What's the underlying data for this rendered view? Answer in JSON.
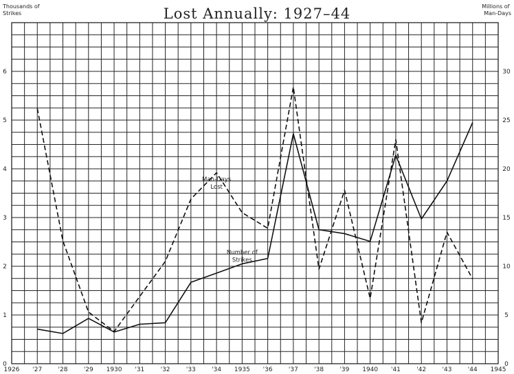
{
  "chart_data": {
    "type": "line",
    "title": "Lost Annually: 1927–44",
    "left_axis_label": [
      "Thousands of",
      "Strikes"
    ],
    "right_axis_label": [
      "Millions of",
      "Man-Days"
    ],
    "x_tick_labels": [
      "1926",
      "'27",
      "'28",
      "'29",
      "1930",
      "'31",
      "'32",
      "'33",
      "'34",
      "1935",
      "'36",
      "'37",
      "'38",
      "'39",
      "1940",
      "'41",
      "'42",
      "'43",
      "'44",
      "1945"
    ],
    "x_range": [
      1926,
      1945
    ],
    "left_ticks": [
      "0",
      "1",
      "2",
      "3",
      "4",
      "5",
      "6"
    ],
    "left_range": [
      0,
      7
    ],
    "right_ticks": [
      "0",
      "5",
      "10",
      "15",
      "20",
      "25",
      "30"
    ],
    "right_range": [
      0,
      35
    ],
    "grid": true,
    "series": [
      {
        "key": "strikes",
        "axis": "left",
        "style": "solid",
        "x": [
          1927,
          1928,
          1929,
          1930,
          1931,
          1932,
          1933,
          1934,
          1935,
          1936,
          1937,
          1938,
          1939,
          1940,
          1941,
          1942,
          1943,
          1944
        ],
        "values": [
          0.71,
          0.62,
          0.93,
          0.65,
          0.81,
          0.84,
          1.67,
          1.86,
          2.05,
          2.16,
          4.72,
          2.75,
          2.67,
          2.51,
          4.28,
          2.97,
          3.75,
          4.95
        ]
      },
      {
        "key": "man_days",
        "axis": "right",
        "style": "dashed",
        "x": [
          1927,
          1928,
          1929,
          1930,
          1931,
          1932,
          1933,
          1934,
          1935,
          1936,
          1937,
          1938,
          1939,
          1940,
          1941,
          1942,
          1943,
          1944
        ],
        "values": [
          26.2,
          12.6,
          5.3,
          3.3,
          6.9,
          10.5,
          16.9,
          19.6,
          15.5,
          13.9,
          28.4,
          9.7,
          17.8,
          6.7,
          23.0,
          4.2,
          13.5,
          8.7
        ]
      }
    ],
    "annotations": [
      {
        "for": "man_days",
        "lines": [
          "Man-Days",
          "Lost"
        ],
        "at": [
          1934,
          3.75
        ]
      },
      {
        "for": "strikes",
        "lines": [
          "Number of",
          "Strikes"
        ],
        "at": [
          1935,
          2.25
        ]
      }
    ]
  }
}
